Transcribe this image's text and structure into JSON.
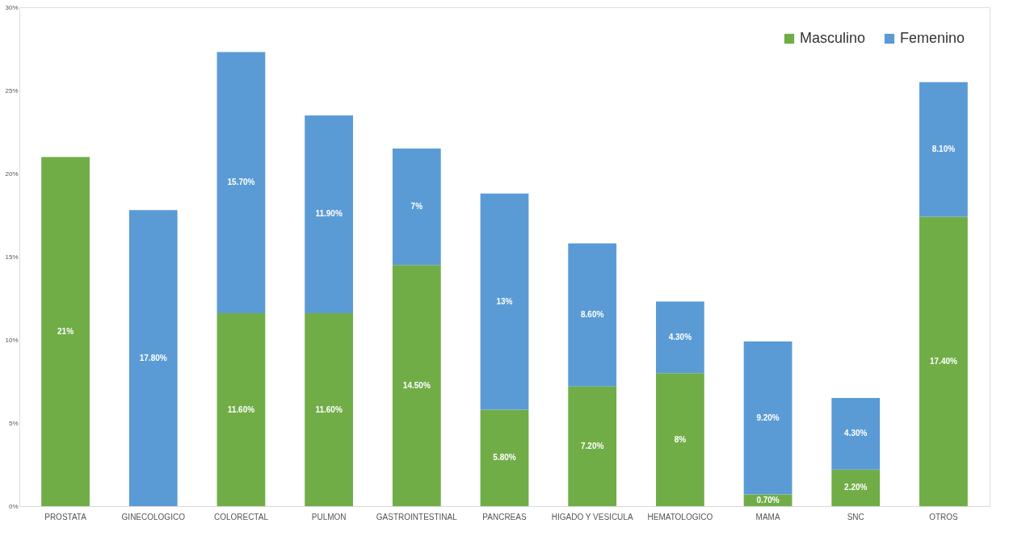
{
  "chart_data": {
    "type": "bar",
    "stacked": true,
    "categories": [
      "PROSTATA",
      "GINECOLOGICO",
      "COLORECTAL",
      "PULMON",
      "GASTROINTESTINAL",
      "PANCREAS",
      "HIGADO Y VESICULA",
      "HEMATOLOGICO",
      "MAMA",
      "SNC",
      "OTROS"
    ],
    "series": [
      {
        "name": "Masculino",
        "color": "#70ad47",
        "values": [
          21,
          null,
          11.6,
          11.6,
          14.5,
          5.8,
          7.2,
          8,
          0.7,
          2.2,
          17.4
        ],
        "value_labels": [
          "21%",
          null,
          "11.60%",
          "11.60%",
          "14.50%",
          "5.80%",
          "7.20%",
          "8%",
          "0.70%",
          "2.20%",
          "17.40%"
        ]
      },
      {
        "name": "Femenino",
        "color": "#5b9bd5",
        "values": [
          null,
          17.8,
          15.7,
          11.9,
          7,
          13,
          8.6,
          4.3,
          9.2,
          4.3,
          8.1
        ],
        "value_labels": [
          null,
          "17.80%",
          "15.70%",
          "11.90%",
          "7%",
          "13%",
          "8.60%",
          "4.30%",
          "9.20%",
          "4.30%",
          "8.10%"
        ]
      }
    ],
    "ylim": [
      0,
      30
    ],
    "yticks": [
      {
        "value": 0,
        "label": "0%"
      },
      {
        "value": 5,
        "label": "5%"
      },
      {
        "value": 10,
        "label": "10%"
      },
      {
        "value": 15,
        "label": "15%"
      },
      {
        "value": 20,
        "label": "20%"
      },
      {
        "value": 25,
        "label": "25%"
      },
      {
        "value": 30,
        "label": "30%"
      }
    ],
    "grid": false,
    "legend": "top right"
  }
}
